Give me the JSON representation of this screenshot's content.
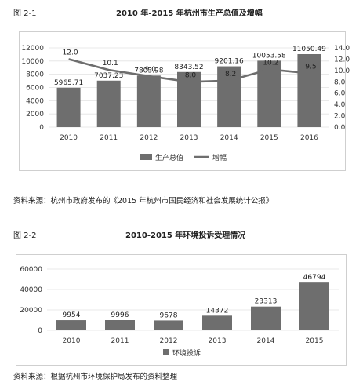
{
  "figure1": {
    "label": "图 2-1",
    "title": "2010 年-2015 年杭州市生产总值及增幅",
    "source": "资料来源：杭州市政府发布的《2015 年杭州市国民经济和社会发展统计公报》"
  },
  "figure2": {
    "label": "图 2-2",
    "title": "2010-2015 年环境投诉受理情况",
    "source": "资料来源：根据杭州市环境保护局发布的资料整理"
  },
  "chart_data": [
    {
      "type": "bar",
      "title": "2010 年-2015 年杭州市生产总值及增幅",
      "categories": [
        "2010",
        "2011",
        "2012",
        "2013",
        "2014",
        "2015",
        "2016"
      ],
      "series": [
        {
          "name": "生产总值",
          "type": "bar",
          "axis": "left",
          "values": [
            5965.71,
            7037.23,
            7803.98,
            8343.52,
            9201.16,
            10053.58,
            11050.49
          ],
          "labels": [
            "5965.71",
            "7037.23",
            "7803.98",
            "8343.52",
            "9201.16",
            "10053.58",
            "11050.49"
          ]
        },
        {
          "name": "增幅",
          "type": "line",
          "axis": "right",
          "values": [
            12.0,
            10.1,
            9.0,
            8.0,
            8.2,
            10.2,
            9.5
          ],
          "labels": [
            "12.0",
            "10.1",
            "9.0",
            "8.0",
            "8.2",
            "10.2",
            "9.5"
          ]
        }
      ],
      "ylim_left": [
        0,
        12000
      ],
      "yticks_left": [
        "0",
        "2000",
        "4000",
        "6000",
        "8000",
        "10000",
        "12000"
      ],
      "ylim_right": [
        0,
        14
      ],
      "yticks_right": [
        "0.0",
        "2.0",
        "4.0",
        "6.0",
        "8.0",
        "10.0",
        "12.0",
        "14.0"
      ],
      "legend_position": "bottom",
      "colors": {
        "bar": "#6e6e6e",
        "line": "#6e6e6e"
      }
    },
    {
      "type": "bar",
      "title": "2010-2015 年环境投诉受理情况",
      "categories": [
        "2010",
        "2011",
        "2012",
        "2013",
        "2014",
        "2015"
      ],
      "series": [
        {
          "name": "环境投诉",
          "values": [
            9954,
            9996,
            9678,
            14372,
            23313,
            46794
          ],
          "labels": [
            "9954",
            "9996",
            "9678",
            "14372",
            "23313",
            "46794"
          ]
        }
      ],
      "ylim": [
        0,
        60000
      ],
      "yticks": [
        "0",
        "20000",
        "40000",
        "60000"
      ],
      "legend_position": "bottom",
      "colors": {
        "bar": "#6e6e6e"
      }
    }
  ]
}
